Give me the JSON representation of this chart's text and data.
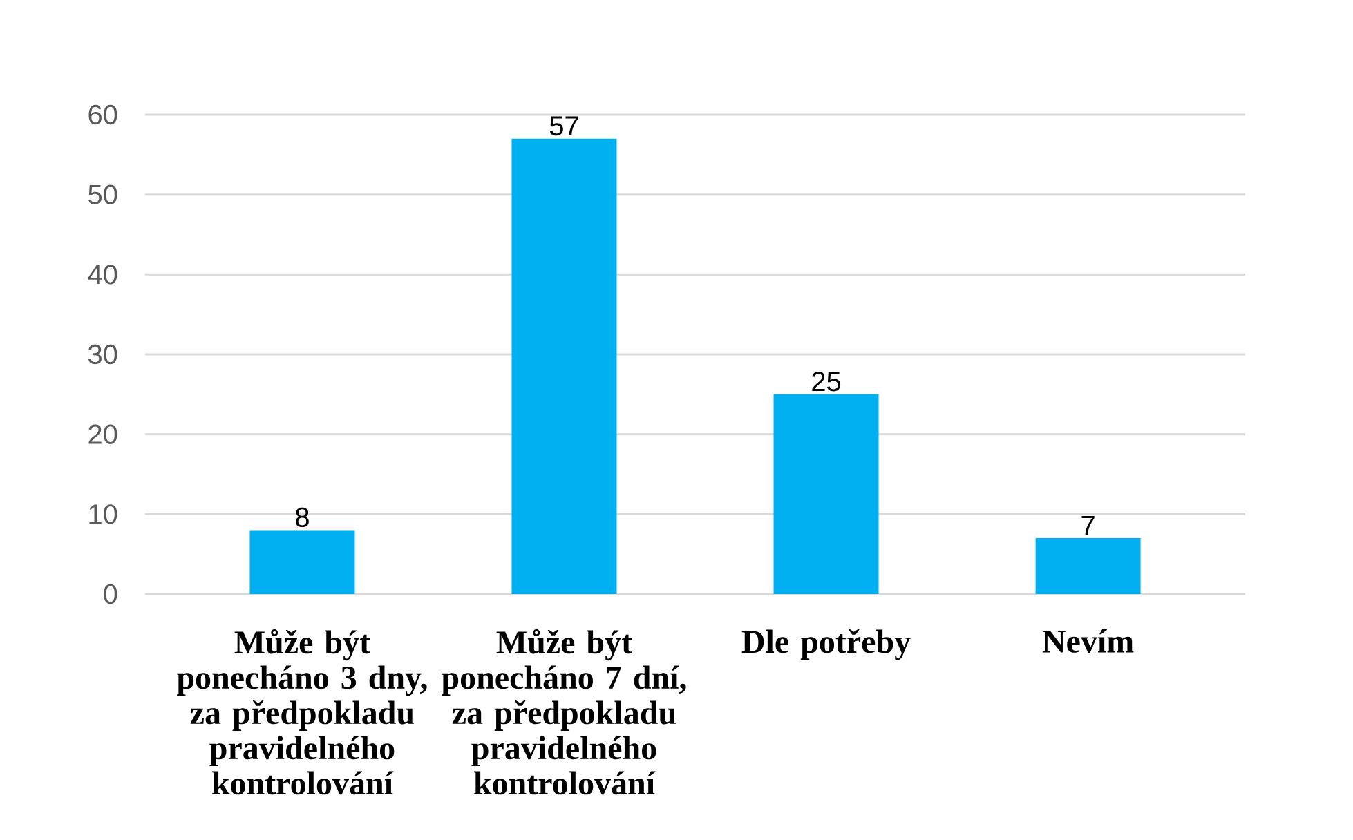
{
  "chart_data": {
    "type": "bar",
    "categories": [
      "Může být ponecháno 3 dny, za předpokladu pravidelného kontrolování",
      "Může být ponecháno 7 dní, za předpokladu pravidelného kontrolování",
      "Dle potřeby",
      "Nevím"
    ],
    "values": [
      8,
      57,
      25,
      7
    ],
    "color": "#00b0f0",
    "ylim": [
      0,
      60
    ],
    "yticks": [
      0,
      10,
      20,
      30,
      40,
      50,
      60
    ],
    "grid": "y",
    "data_labels": true
  }
}
